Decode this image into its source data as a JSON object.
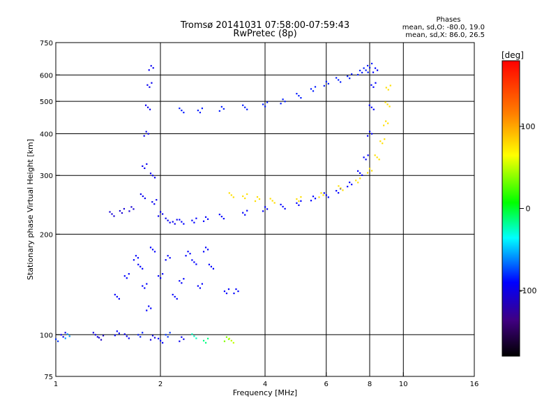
{
  "chart_data": {
    "type": "scatter",
    "title": "Tromsø 20141031 07:58:00-07:59:43",
    "subtitle": "RwPretec (8p)",
    "xlabel": "Frequency [MHz]",
    "ylabel": "Stationary phase Virtual Height [km]",
    "x_scale": "log2",
    "y_scale": "log",
    "xlim": [
      1,
      16
    ],
    "ylim": [
      75,
      750
    ],
    "x_ticks": [
      1,
      2,
      4,
      6,
      8,
      10,
      16
    ],
    "y_ticks": [
      75,
      100,
      200,
      300,
      400,
      500,
      600,
      750
    ],
    "x_gridlines": [
      2,
      4,
      6,
      8,
      10
    ],
    "y_gridlines": [
      100,
      200,
      300,
      400,
      500,
      600
    ],
    "grid": true,
    "phases_box": {
      "heading": "Phases",
      "line_o": "mean, sd,O: -80.0, 19.0",
      "line_x": "mean, sd,X:  86.0, 26.5"
    },
    "colorbar": {
      "label": "[deg]",
      "range": [
        -180,
        180
      ],
      "ticks": [
        100,
        0,
        -100
      ],
      "colors": [
        "#ff0000",
        "#ff8000",
        "#ffff00",
        "#00ff00",
        "#00ffff",
        "#0000ff",
        "#400080",
        "#000000"
      ]
    },
    "series": [
      {
        "key": "lowE",
        "desc_phase": -90,
        "points": [
          [
            1.0,
            97
          ],
          [
            1.05,
            100
          ],
          [
            1.08,
            99
          ],
          [
            1.3,
            100
          ],
          [
            1.35,
            98
          ],
          [
            1.5,
            101
          ],
          [
            1.6,
            99
          ],
          [
            1.75,
            100
          ],
          [
            1.9,
            98
          ],
          [
            2.0,
            96
          ],
          [
            2.1,
            100
          ],
          [
            2.3,
            97
          ],
          [
            2.5,
            99
          ],
          [
            2.7,
            96
          ],
          [
            3.1,
            97
          ],
          [
            3.2,
            96
          ]
        ],
        "phase": [
          -80,
          -95,
          -60,
          -100,
          -110,
          -90,
          -95,
          -85,
          -100,
          -90,
          -80,
          -95,
          -30,
          -20,
          40,
          60
        ]
      },
      {
        "key": "sporadic_lower",
        "phase": -90,
        "points": [
          [
            1.5,
            130
          ],
          [
            1.6,
            150
          ],
          [
            1.7,
            170
          ],
          [
            1.75,
            160
          ],
          [
            1.8,
            140
          ],
          [
            1.85,
            120
          ],
          [
            1.9,
            180
          ],
          [
            2.0,
            150
          ],
          [
            2.1,
            170
          ],
          [
            2.2,
            130
          ],
          [
            2.3,
            145
          ],
          [
            2.4,
            175
          ],
          [
            2.5,
            165
          ],
          [
            2.6,
            140
          ],
          [
            2.7,
            180
          ],
          [
            2.8,
            160
          ],
          [
            3.1,
            135
          ],
          [
            3.3,
            135
          ]
        ]
      },
      {
        "key": "F1_O",
        "phase": -90,
        "points": [
          [
            2.3,
            218
          ],
          [
            2.5,
            220
          ],
          [
            2.7,
            222
          ],
          [
            3.0,
            226
          ],
          [
            3.5,
            232
          ],
          [
            4.0,
            238
          ],
          [
            4.5,
            242
          ],
          [
            5.0,
            248
          ],
          [
            5.5,
            256
          ],
          [
            6.0,
            262
          ],
          [
            6.5,
            270
          ],
          [
            7.0,
            282
          ],
          [
            7.5,
            305
          ],
          [
            7.8,
            340
          ],
          [
            8.0,
            400
          ],
          [
            8.1,
            480
          ],
          [
            8.2,
            560
          ],
          [
            8.3,
            620
          ]
        ]
      },
      {
        "key": "F1_X",
        "phase": 90,
        "points": [
          [
            3.2,
            262
          ],
          [
            3.5,
            260
          ],
          [
            3.8,
            255
          ],
          [
            4.2,
            252
          ],
          [
            5.0,
            255
          ],
          [
            5.8,
            262
          ],
          [
            6.6,
            275
          ],
          [
            7.4,
            290
          ],
          [
            8.0,
            310
          ],
          [
            8.4,
            340
          ],
          [
            8.7,
            380
          ],
          [
            8.9,
            430
          ],
          [
            9.0,
            490
          ],
          [
            9.05,
            550
          ]
        ]
      },
      {
        "key": "F2_upper",
        "phase": -85,
        "points": [
          [
            2.3,
            470
          ],
          [
            2.6,
            470
          ],
          [
            3.0,
            475
          ],
          [
            3.5,
            480
          ],
          [
            4.0,
            490
          ],
          [
            4.5,
            500
          ],
          [
            5.0,
            520
          ],
          [
            5.5,
            545
          ],
          [
            6.0,
            565
          ],
          [
            6.5,
            580
          ],
          [
            7.0,
            595
          ],
          [
            7.5,
            610
          ],
          [
            7.8,
            620
          ],
          [
            8.0,
            640
          ]
        ]
      },
      {
        "key": "vertical_branch",
        "phase": -95,
        "points": [
          [
            1.78,
            260
          ],
          [
            1.8,
            320
          ],
          [
            1.82,
            400
          ],
          [
            1.84,
            480
          ],
          [
            1.86,
            560
          ],
          [
            1.88,
            630
          ],
          [
            1.9,
            300
          ],
          [
            1.92,
            250
          ],
          [
            2.0,
            230
          ],
          [
            2.1,
            220
          ],
          [
            2.2,
            218
          ]
        ]
      },
      {
        "key": "low_left",
        "phase": -105,
        "points": [
          [
            1.45,
            230
          ],
          [
            1.55,
            235
          ],
          [
            1.65,
            238
          ]
        ]
      }
    ]
  }
}
